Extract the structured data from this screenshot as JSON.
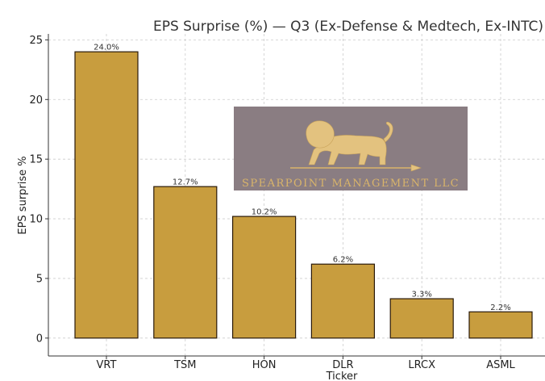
{
  "chart_data": {
    "type": "bar",
    "title": "EPS Surprise (%) — Q3 (Ex-Defense & Medtech, Ex-INTC)",
    "xlabel": "Ticker",
    "ylabel": "EPS surprise %",
    "categories": [
      "VRT",
      "TSM",
      "HON",
      "DLR",
      "LRCX",
      "ASML"
    ],
    "values": [
      24.0,
      12.7,
      10.2,
      6.2,
      3.3,
      2.2
    ],
    "data_labels": [
      "24.0%",
      "12.7%",
      "10.2%",
      "6.2%",
      "3.3%",
      "2.2%"
    ],
    "ylim": [
      -1.5,
      25.5
    ],
    "yticks": [
      0,
      5,
      10,
      15,
      20,
      25
    ],
    "grid": true,
    "bar_color": "#c89d3e"
  },
  "watermark": {
    "text": "SPEARPOINT MANAGEMENT LLC",
    "background": "#8a7d82",
    "accent": "#d9b46a"
  }
}
